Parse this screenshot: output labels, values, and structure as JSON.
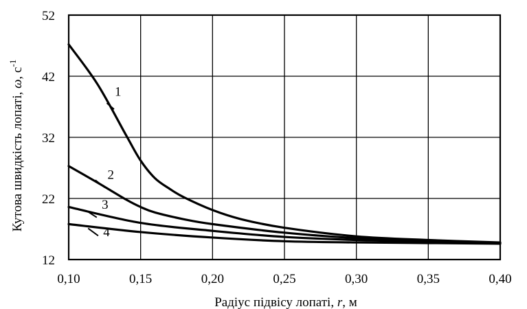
{
  "chart_data": {
    "type": "line",
    "xlabel_text": "Радіус підвісу лопаті, ",
    "xlabel_var": "r",
    "xlabel_unit": ", м",
    "ylabel_text": "Кутова швидкість лопаті, ",
    "ylabel_var": "ω",
    "ylabel_unit": ", с",
    "ylabel_exp": "-1",
    "xlim": [
      0.1,
      0.4
    ],
    "ylim": [
      12,
      52
    ],
    "x_ticks": [
      "0,10",
      "0,15",
      "0,20",
      "0,25",
      "0,30",
      "0,35",
      "0,40"
    ],
    "x_tick_values": [
      0.1,
      0.15,
      0.2,
      0.25,
      0.3,
      0.35,
      0.4
    ],
    "y_ticks": [
      "12",
      "22",
      "32",
      "42",
      "52"
    ],
    "y_tick_values": [
      12,
      22,
      32,
      42,
      52
    ],
    "grid": true,
    "series": [
      {
        "name": "1",
        "x": [
          0.1,
          0.12,
          0.14,
          0.15,
          0.16,
          0.17,
          0.18,
          0.2,
          0.22,
          0.25,
          0.3,
          0.35,
          0.4
        ],
        "y": [
          47.2,
          40.7,
          32.3,
          28.2,
          25.3,
          23.6,
          22.2,
          20.1,
          18.6,
          17.2,
          15.8,
          15.2,
          14.8
        ]
      },
      {
        "name": "2",
        "x": [
          0.1,
          0.12,
          0.14,
          0.15,
          0.16,
          0.18,
          0.2,
          0.25,
          0.3,
          0.35,
          0.4
        ],
        "y": [
          27.3,
          24.6,
          21.8,
          20.6,
          19.7,
          18.6,
          17.8,
          16.4,
          15.5,
          15.0,
          14.7
        ]
      },
      {
        "name": "3",
        "x": [
          0.1,
          0.15,
          0.2,
          0.25,
          0.3,
          0.35,
          0.4
        ],
        "y": [
          20.6,
          18.0,
          16.7,
          15.7,
          15.2,
          14.9,
          14.7
        ]
      },
      {
        "name": "4",
        "x": [
          0.1,
          0.15,
          0.2,
          0.25,
          0.3,
          0.35,
          0.4
        ],
        "y": [
          17.8,
          16.5,
          15.6,
          15.0,
          14.8,
          14.7,
          14.6
        ]
      }
    ]
  }
}
